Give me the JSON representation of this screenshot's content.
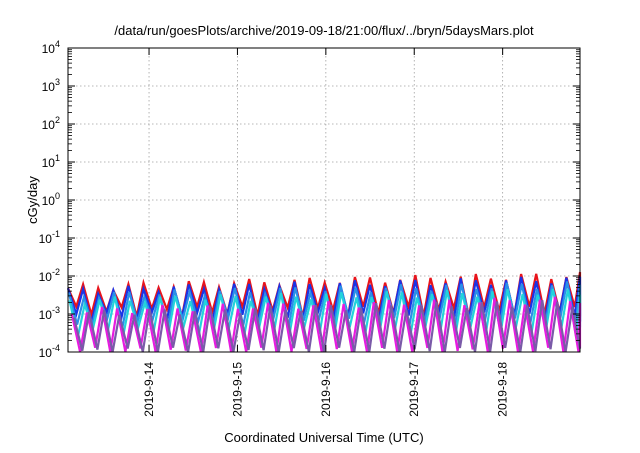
{
  "chart_data": {
    "type": "line",
    "title": "/data/run/goesPlots/archive/2019-09-18/21:00/flux/../bryn/5daysMars.plot",
    "xlabel": "Coordinated Universal Time (UTC)",
    "ylabel": "cGy/day",
    "yscale": "log",
    "ylim": [
      0.0001,
      10000
    ],
    "xlim": [
      "2019-09-13 02:00",
      "2019-09-18 21:00"
    ],
    "grid": true,
    "y_ticks": [
      {
        "value": 0.0001,
        "base": "10",
        "exp": "-4"
      },
      {
        "value": 0.001,
        "base": "10",
        "exp": "-3"
      },
      {
        "value": 0.01,
        "base": "10",
        "exp": "-2"
      },
      {
        "value": 0.1,
        "base": "10",
        "exp": "-1"
      },
      {
        "value": 1,
        "base": "10",
        "exp": "0"
      },
      {
        "value": 10,
        "base": "10",
        "exp": "1"
      },
      {
        "value": 100,
        "base": "10",
        "exp": "2"
      },
      {
        "value": 1000,
        "base": "10",
        "exp": "3"
      },
      {
        "value": 10000,
        "base": "10",
        "exp": "4"
      }
    ],
    "x_ticks": [
      {
        "value": "2019-09-14 00:00",
        "label": "2019-9-14"
      },
      {
        "value": "2019-09-15 00:00",
        "label": "2019-9-15"
      },
      {
        "value": "2019-09-16 00:00",
        "label": "2019-9-16"
      },
      {
        "value": "2019-09-17 00:00",
        "label": "2019-9-17"
      },
      {
        "value": "2019-09-18 00:00",
        "label": "2019-9-18"
      }
    ],
    "series": [
      {
        "color": "#e8141b",
        "peak_start": 0.0048,
        "peak_end": 0.0105,
        "trough": 0.0012,
        "shift": 0.0
      },
      {
        "color": "#1a33e6",
        "peak_start": 0.004,
        "peak_end": 0.0082,
        "trough": 0.00085,
        "shift": 0.0
      },
      {
        "color": "#2a8fe8",
        "peak_start": 0.003,
        "peak_end": 0.006,
        "trough": 0.0006,
        "shift": 0.05
      },
      {
        "color": "#22d3dc",
        "peak_start": 0.0022,
        "peak_end": 0.004,
        "trough": 0.00035,
        "shift": 0.1
      },
      {
        "color": "#e61be0",
        "peak_start": 0.0012,
        "peak_end": 0.0024,
        "trough": 0.0001,
        "shift": 0.25
      },
      {
        "color": "#7a5aa8",
        "peak_start": 0.001,
        "peak_end": 0.002,
        "trough": 0.0001,
        "shift": 0.4
      }
    ],
    "sawtooth_period_hours": 4.1
  }
}
